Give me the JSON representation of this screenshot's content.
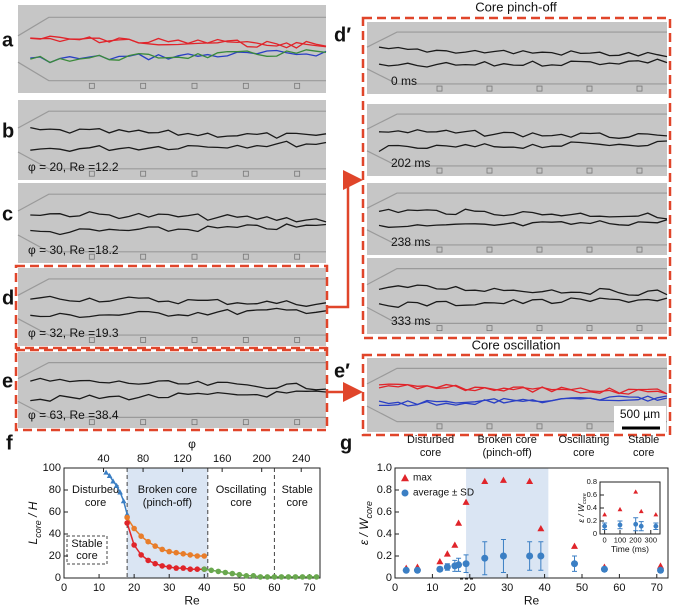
{
  "panels": [
    {
      "label": "a"
    },
    {
      "label": "b",
      "caption": "φ = 20, Re =12.2"
    },
    {
      "label": "c",
      "caption": "φ = 30, Re =18.2"
    },
    {
      "label": "d",
      "caption": "φ = 32, Re =19.3"
    },
    {
      "label": "e",
      "caption": "φ = 63, Re =38.4"
    }
  ],
  "pinch_off": {
    "label": "d′",
    "title": "Core pinch-off",
    "frames": [
      "0 ms",
      "202 ms",
      "238 ms",
      "333 ms"
    ]
  },
  "oscillation": {
    "label": "e′",
    "title": "Core oscillation",
    "scale_bar": "500 µm"
  },
  "chart_data": [
    {
      "type": "line",
      "label": "f",
      "xlabel": "Re",
      "x2label": "φ",
      "ylabel": [
        "L",
        "core",
        " / H"
      ],
      "xlim": [
        0,
        73
      ],
      "xticks": [
        0,
        10,
        20,
        30,
        40,
        50,
        60,
        70
      ],
      "x2lim": [
        0,
        259
      ],
      "x2ticks": [
        40,
        80,
        120,
        160,
        200,
        240
      ],
      "ylim": [
        0,
        100
      ],
      "yticks": [
        0,
        20,
        40,
        60,
        80,
        100
      ],
      "bounds": [
        0,
        18,
        41,
        60,
        73
      ],
      "shaded": 1,
      "dividers": true,
      "regions": [
        {
          "lines": [
            "Disturbed",
            "core"
          ]
        },
        {
          "lines": [
            "Broken core",
            "(pinch-off)"
          ]
        },
        {
          "lines": [
            "Oscillating",
            "core"
          ]
        },
        {
          "lines": [
            "Stable",
            "core"
          ]
        }
      ],
      "note": {
        "lines": [
          "Stable",
          "core"
        ]
      },
      "series": [
        {
          "color": "#3b7fc4",
          "marker": "triangle",
          "x": [
            12,
            13,
            14,
            15,
            16,
            17,
            18
          ],
          "values": [
            96,
            93,
            88,
            84,
            78,
            70,
            58
          ]
        },
        {
          "color": "#e87d2a",
          "marker": "circle",
          "x": [
            18,
            20,
            22,
            24,
            26,
            28,
            30,
            32,
            34,
            36,
            38,
            40
          ],
          "values": [
            55,
            45,
            38,
            33,
            29,
            26,
            24,
            23,
            22,
            21,
            20,
            20
          ]
        },
        {
          "color": "#e0242a",
          "marker": "circle",
          "x": [
            18,
            20,
            22,
            24,
            26,
            28,
            30,
            32,
            34,
            36,
            38,
            40
          ],
          "values": [
            50,
            30,
            21,
            16,
            13,
            11,
            10,
            9,
            9,
            8,
            8,
            8
          ]
        },
        {
          "color": "#6aa84f",
          "marker": "circle",
          "x": [
            40,
            42,
            44,
            46,
            48,
            50,
            52,
            54,
            56,
            58,
            60,
            62,
            64,
            66,
            68,
            70,
            72
          ],
          "values": [
            8,
            7,
            6,
            5,
            4,
            3,
            2,
            2,
            1,
            1,
            1,
            1,
            1,
            1,
            1,
            1,
            1
          ]
        }
      ]
    },
    {
      "type": "scatter",
      "label": "g",
      "xlabel": "Re",
      "ylabel": [
        "ε / W",
        "core"
      ],
      "xlim": [
        0,
        73
      ],
      "xticks": [
        0,
        10,
        20,
        30,
        40,
        50,
        60,
        70
      ],
      "ylim": [
        0,
        1
      ],
      "yticks": [
        0,
        0.2,
        0.4,
        0.6,
        0.8,
        {
          "value": 1,
          "label": "1.0"
        }
      ],
      "bounds": [
        0,
        19,
        41,
        60,
        73
      ],
      "shaded": 1,
      "dividers": false,
      "regions": [
        {
          "lines": [
            "Disturbed",
            "core"
          ]
        },
        {
          "lines": [
            "Broken core",
            "(pinch-off)"
          ]
        },
        {
          "lines": [
            "Oscillating",
            "core"
          ]
        },
        {
          "lines": [
            "Stable",
            "core"
          ]
        }
      ],
      "legend": true,
      "series": [
        {
          "name": "max",
          "color": "#e0242a",
          "marker": "triangle",
          "x": [
            3,
            6,
            12,
            14,
            16,
            17,
            19,
            24,
            29,
            36,
            39,
            48,
            56,
            71
          ],
          "values": [
            0.09,
            0.1,
            0.15,
            0.22,
            0.3,
            0.5,
            0.69,
            0.88,
            0.89,
            0.88,
            0.45,
            0.29,
            0.1,
            0.11
          ]
        },
        {
          "name": "average ± SD",
          "color": "#3b7fc4",
          "marker": "circle",
          "x": [
            3,
            6,
            12,
            14,
            16,
            17,
            19,
            24,
            29,
            36,
            39,
            48,
            56,
            71
          ],
          "values": [
            0.07,
            0.07,
            0.08,
            0.1,
            0.11,
            0.12,
            0.13,
            0.18,
            0.2,
            0.2,
            0.2,
            0.13,
            0.08,
            0.07
          ],
          "errors": [
            0.01,
            0.01,
            0.02,
            0.03,
            0.05,
            0.06,
            0.08,
            0.15,
            0.15,
            0.13,
            0.13,
            0.07,
            0.02,
            0.02
          ]
        }
      ]
    },
    {
      "type": "scatter",
      "xlabel": "Time (ms)",
      "ylabel": [
        "ε / W",
        "core"
      ],
      "xlim": [
        -30,
        360
      ],
      "xticks": [
        0,
        100,
        200,
        300
      ],
      "ylim": [
        0,
        0.8
      ],
      "yticks": [
        0,
        0.2,
        0.4,
        0.6,
        0.8
      ],
      "series": [
        {
          "color": "#e0242a",
          "marker": "triangle",
          "x": [
            0,
            100,
            202,
            238,
            333
          ],
          "values": [
            0.3,
            0.38,
            0.65,
            0.35,
            0.3
          ]
        },
        {
          "color": "#3b7fc4",
          "marker": "circle",
          "x": [
            0,
            100,
            202,
            238,
            333
          ],
          "values": [
            0.12,
            0.14,
            0.15,
            0.12,
            0.12
          ],
          "errors": [
            0.05,
            0.06,
            0.1,
            0.07,
            0.05
          ]
        }
      ]
    }
  ]
}
